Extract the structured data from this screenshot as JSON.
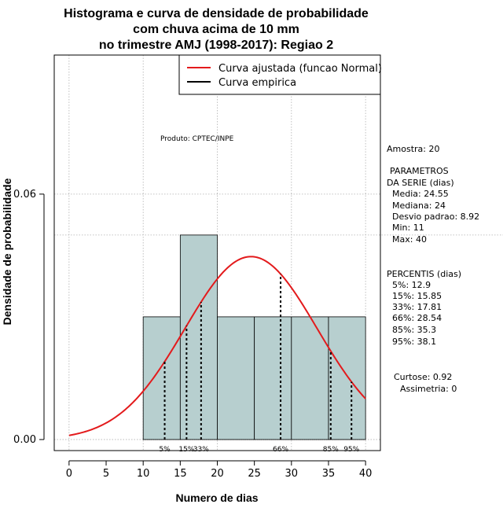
{
  "chart_data": {
    "type": "bar",
    "title": [
      "Histograma e curva de densidade de probabilidade",
      "com chuva acima de 10 mm",
      "no trimestre AMJ (1998-2017): Regiao 2"
    ],
    "xlabel": "Numero de dias",
    "ylabel": "Densidade de probabilidade",
    "xlim": [
      -2,
      42
    ],
    "ylim": [
      -0.0027,
      0.094
    ],
    "xticks": [
      0,
      5,
      10,
      15,
      20,
      25,
      30,
      35,
      40
    ],
    "xtick_labels": [
      "0",
      "5",
      "10",
      "15",
      "20",
      "25",
      "30",
      "35",
      "40"
    ],
    "yticks": [
      0.0,
      0.06
    ],
    "ytick_labels": [
      "0.00",
      "0.06"
    ],
    "vgrid": [
      0,
      10,
      20,
      30,
      40
    ],
    "hgrid": [
      0.0,
      0.06
    ],
    "ref_line": 0.05,
    "bins": [
      {
        "x0": 10,
        "x1": 15,
        "density": 0.03
      },
      {
        "x0": 15,
        "x1": 20,
        "density": 0.05
      },
      {
        "x0": 20,
        "x1": 25,
        "density": 0.03
      },
      {
        "x0": 25,
        "x1": 30,
        "density": 0.03
      },
      {
        "x0": 30,
        "x1": 35,
        "density": 0.03
      },
      {
        "x0": 35,
        "x1": 40,
        "density": 0.03
      }
    ],
    "fitted_curve": {
      "name": "Curva ajustada (funcao Normal)",
      "mean": 24.55,
      "sd": 8.92,
      "x_range": [
        0,
        40
      ]
    },
    "percentiles": [
      {
        "label": "5%",
        "x": 12.9
      },
      {
        "label": "15%",
        "x": 15.85
      },
      {
        "label": "33%",
        "x": 17.81
      },
      {
        "label": "66%",
        "x": 28.54
      },
      {
        "label": "85%",
        "x": 35.3
      },
      {
        "label": "95%",
        "x": 38.1
      }
    ],
    "legend": [
      {
        "label": "Curva ajustada (funcao Normal)",
        "color": "#e31a1c"
      },
      {
        "label": "Curva empirica",
        "color": "#000000"
      }
    ],
    "legend_position": "top-right"
  },
  "colors": {
    "bar_fill": "#b7cfcf",
    "curve": "#e31a1c",
    "grid": "#b0b0b0"
  },
  "product_label": "Produto: CPTEC/INPE",
  "side_panel": {
    "amostra": "Amostra: 20",
    "param_title_1": "PARAMETROS",
    "param_title_2": "DA SERIE (dias)",
    "media": "Media: 24.55",
    "mediana": "Mediana: 24",
    "desvio": "Desvio padrao: 8.92",
    "min": "Min: 11",
    "max": "Max: 40",
    "percentis_title": "PERCENTIS (dias)",
    "p5": "5%: 12.9",
    "p15": "15%: 15.85",
    "p33": "33%: 17.81",
    "p66": "66%: 28.54",
    "p85": "85%: 35.3",
    "p95": "95%: 38.1",
    "curtose": "Curtose: 0.92",
    "assimetria": "Assimetria: 0"
  }
}
